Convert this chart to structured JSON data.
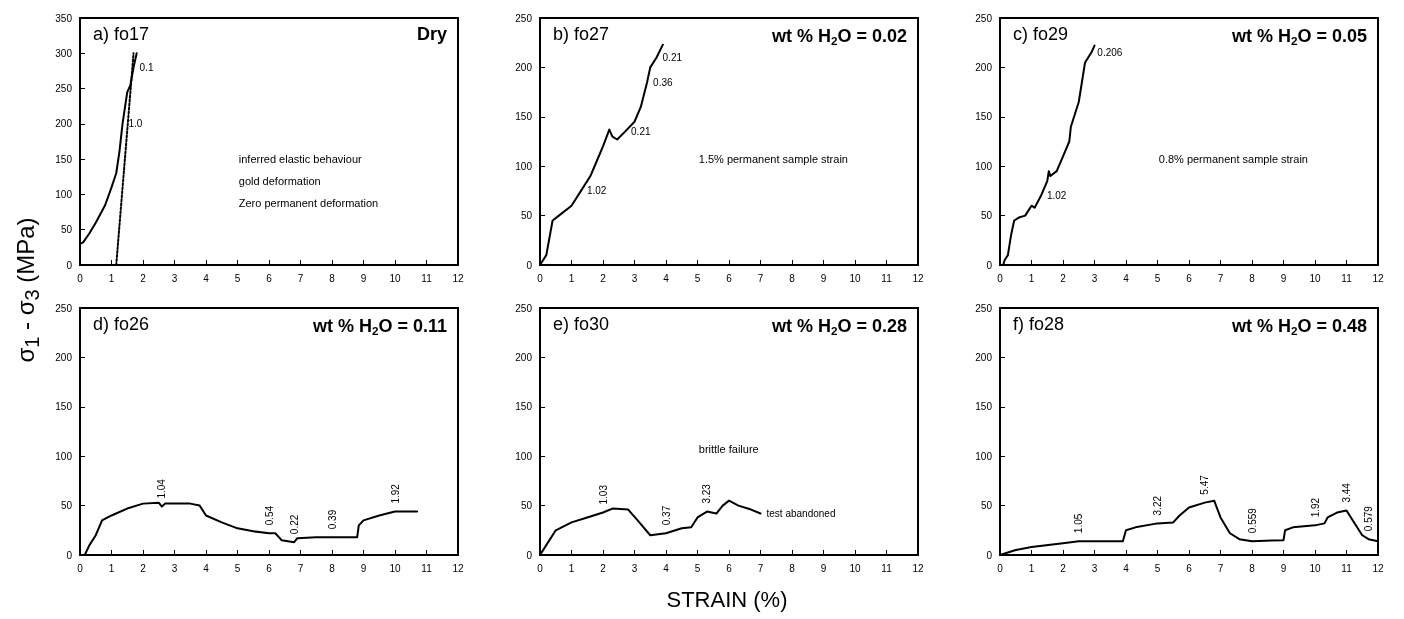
{
  "chart_data": [
    {
      "type": "line",
      "title": "a) fo17",
      "subtitle": "Dry",
      "ylabel": "σ$_{1}$ - σ$_{3}$ (MPa)",
      "xlim": [
        0,
        12
      ],
      "ylim": [
        0,
        350
      ],
      "xticks": [
        0,
        1,
        2,
        3,
        4,
        5,
        6,
        7,
        8,
        9,
        10,
        11,
        12
      ],
      "yticks": [
        0,
        50,
        100,
        150,
        200,
        250,
        300,
        350
      ],
      "marker": "none",
      "series": [
        {
          "color": "#000000",
          "line_style": "solid",
          "x": [
            0,
            0,
            0.1,
            0.3,
            0.5,
            0.8,
            1.0,
            1.15,
            1.25,
            1.35,
            1.45,
            1.5,
            1.6,
            1.7,
            1.8
          ],
          "values": [
            0,
            30,
            32,
            45,
            60,
            85,
            110,
            130,
            160,
            200,
            230,
            245,
            255,
            280,
            300
          ]
        },
        {
          "color": "#000000",
          "line_style": "dotted",
          "x": [
            1.15,
            1.7
          ],
          "values": [
            0,
            300
          ]
        }
      ],
      "annotations": [
        {
          "text": "0.1",
          "x": 1.7,
          "y": 280
        },
        {
          "text": "1.0",
          "x": 1.35,
          "y": 200
        },
        "inferred elastic behaviour",
        "gold deformation",
        "Zero permanent deformation"
      ]
    },
    {
      "type": "line",
      "title": "b) fo27",
      "subtitle": "wt % H$_{2}$O = 0.02",
      "xlim": [
        0,
        12
      ],
      "ylim": [
        0,
        250
      ],
      "xticks": [
        0,
        1,
        2,
        3,
        4,
        5,
        6,
        7,
        8,
        9,
        10,
        11,
        12
      ],
      "yticks": [
        0,
        50,
        100,
        150,
        200,
        250
      ],
      "marker": "none",
      "series": [
        {
          "color": "#000000",
          "line_style": "solid",
          "x": [
            0,
            0.2,
            0.4,
            0.6,
            1.0,
            1.3,
            1.6,
            1.8,
            2.0,
            2.2,
            2.3,
            2.45,
            2.7,
            3.0,
            3.2,
            3.4,
            3.5,
            3.7,
            3.9
          ],
          "values": [
            0,
            10,
            45,
            50,
            60,
            75,
            90,
            105,
            120,
            137,
            130,
            127,
            135,
            145,
            160,
            185,
            200,
            210,
            223
          ]
        }
      ],
      "annotations": [
        {
          "text": "1.02",
          "x": 1.3,
          "y": 75
        },
        {
          "text": "0.21",
          "x": 2.7,
          "y": 135
        },
        {
          "text": "0.36",
          "x": 3.4,
          "y": 185
        },
        {
          "text": "0.21",
          "x": 3.7,
          "y": 210
        },
        "1.5% permanent sample strain"
      ]
    },
    {
      "type": "line",
      "title": "c) fo29",
      "subtitle": "wt % H$_{2}$O = 0.05",
      "xlim": [
        0,
        12
      ],
      "ylim": [
        0,
        250
      ],
      "xticks": [
        0,
        1,
        2,
        3,
        4,
        5,
        6,
        7,
        8,
        9,
        10,
        11,
        12
      ],
      "yticks": [
        0,
        50,
        100,
        150,
        200,
        250
      ],
      "marker": "none",
      "series": [
        {
          "color": "#000000",
          "line_style": "solid",
          "x": [
            0.1,
            0.15,
            0.25,
            0.35,
            0.45,
            0.6,
            0.8,
            1.0,
            1.1,
            1.3,
            1.5,
            1.55,
            1.6,
            1.8,
            2.0,
            2.2,
            2.25,
            2.5,
            2.6,
            2.7,
            2.9,
            3.0
          ],
          "values": [
            0,
            5,
            10,
            30,
            45,
            48,
            50,
            60,
            58,
            70,
            85,
            95,
            90,
            95,
            110,
            125,
            140,
            165,
            185,
            205,
            215,
            222
          ]
        }
      ],
      "annotations": [
        {
          "text": "1.02",
          "x": 1.3,
          "y": 70
        },
        {
          "text": "0.206",
          "x": 2.9,
          "y": 215
        },
        "0.8% permanent sample strain"
      ]
    },
    {
      "type": "line",
      "title": "d) fo26",
      "subtitle": "wt % H$_{2}$O = 0.11",
      "xlim": [
        0,
        12
      ],
      "ylim": [
        0,
        250
      ],
      "xticks": [
        0,
        1,
        2,
        3,
        4,
        5,
        6,
        7,
        8,
        9,
        10,
        11,
        12
      ],
      "yticks": [
        0,
        50,
        100,
        150,
        200,
        250
      ],
      "marker": "none",
      "series": [
        {
          "color": "#000000",
          "line_style": "solid",
          "x": [
            0.15,
            0.3,
            0.5,
            0.7,
            1,
            1.5,
            2,
            2.5,
            2.6,
            2.7,
            3.5,
            3.8,
            4,
            4.5,
            5,
            5.5,
            6,
            6.2,
            6.4,
            6.8,
            6.9,
            7.5,
            8,
            8.8,
            8.85,
            9,
            9.5,
            10,
            10.7
          ],
          "values": [
            0,
            10,
            20,
            35,
            40,
            47,
            52,
            53,
            49,
            52,
            52,
            50,
            40,
            33,
            27,
            24,
            22,
            22,
            15,
            13,
            17,
            18,
            18,
            18,
            30,
            35,
            40,
            44,
            44
          ]
        }
      ],
      "annotations": [
        {
          "text": "1.04",
          "x": 2.6,
          "y": 49
        },
        {
          "text": "0.54",
          "x": 6,
          "y": 22
        },
        {
          "text": "0.22",
          "x": 6.8,
          "y": 13
        },
        {
          "text": "0.39",
          "x": 8,
          "y": 18
        },
        {
          "text": "1.92",
          "x": 10,
          "y": 44
        }
      ]
    },
    {
      "type": "line",
      "title": "e) fo30",
      "subtitle": "wt % H$_{2}$O = 0.28",
      "xlabel": "STRAIN (%)",
      "xlim": [
        0,
        12
      ],
      "ylim": [
        0,
        250
      ],
      "xticks": [
        0,
        1,
        2,
        3,
        4,
        5,
        6,
        7,
        8,
        9,
        10,
        11,
        12
      ],
      "yticks": [
        0,
        50,
        100,
        150,
        200,
        250
      ],
      "marker": "none",
      "series": [
        {
          "color": "#000000",
          "line_style": "solid",
          "x": [
            0,
            0.2,
            0.5,
            1,
            1.5,
            2,
            2.3,
            2.8,
            3.1,
            3.5,
            4,
            4.5,
            4.8,
            5,
            5.3,
            5.6,
            5.8,
            6,
            6.3,
            6.7,
            7
          ],
          "values": [
            0,
            10,
            25,
            33,
            38,
            43,
            47,
            46,
            35,
            20,
            22,
            27,
            28,
            38,
            44,
            42,
            50,
            55,
            50,
            46,
            42
          ]
        }
      ],
      "annotations": [
        {
          "text": "1.03",
          "x": 2,
          "y": 43
        },
        {
          "text": "0.37",
          "x": 4,
          "y": 22
        },
        {
          "text": "3.23",
          "x": 5.3,
          "y": 44
        },
        {
          "text": "test abandoned",
          "x": 7,
          "y": 42
        },
        "brittle failure"
      ]
    },
    {
      "type": "line",
      "title": "f) fo28",
      "subtitle": "wt % H$_{2}$O = 0.48",
      "xlim": [
        0,
        12
      ],
      "ylim": [
        0,
        250
      ],
      "xticks": [
        0,
        1,
        2,
        3,
        4,
        5,
        6,
        7,
        8,
        9,
        10,
        11,
        12
      ],
      "yticks": [
        0,
        50,
        100,
        150,
        200,
        250
      ],
      "marker": "none",
      "series": [
        {
          "color": "#000000",
          "line_style": "solid",
          "x": [
            0,
            0.5,
            1,
            2,
            2.5,
            3.9,
            4,
            4.3,
            5,
            5.5,
            5.7,
            6,
            6.5,
            6.8,
            7,
            7.3,
            7.6,
            8,
            9,
            9.05,
            9.3,
            10,
            10.3,
            10.4,
            10.7,
            11,
            11.2,
            11.5,
            11.7,
            12
          ],
          "values": [
            0,
            5,
            8,
            12,
            14,
            14,
            25,
            28,
            32,
            33,
            40,
            48,
            53,
            55,
            38,
            22,
            16,
            14,
            15,
            25,
            28,
            30,
            32,
            38,
            43,
            45,
            35,
            20,
            16,
            14
          ]
        }
      ],
      "annotations": [
        {
          "text": "1.05",
          "x": 2.5,
          "y": 14
        },
        {
          "text": "3.22",
          "x": 5,
          "y": 32
        },
        {
          "text": "5.47",
          "x": 6.5,
          "y": 53
        },
        {
          "text": "0.559",
          "x": 8,
          "y": 14
        },
        {
          "text": "1.92",
          "x": 10,
          "y": 30
        },
        {
          "text": "3.44",
          "x": 11,
          "y": 45
        },
        {
          "text": "0.579",
          "x": 11.7,
          "y": 16
        }
      ]
    }
  ]
}
